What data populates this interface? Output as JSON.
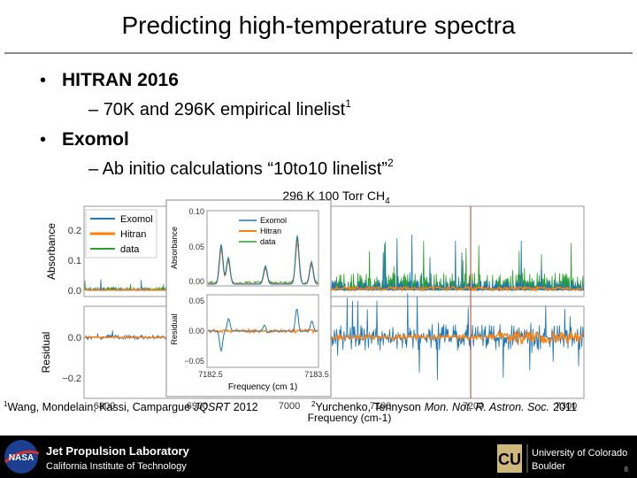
{
  "header": {
    "title": "Predicting high-temperature spectra"
  },
  "bullets": [
    {
      "text": "HITRAN 2016",
      "sub": {
        "text": "70K and 296K empirical linelist",
        "sup": "1"
      }
    },
    {
      "text": "Exomol",
      "sub": {
        "text": "Ab initio calculations “10to10 linelist”",
        "sup": "2"
      }
    }
  ],
  "figure": {
    "title": "296 K 100 Torr CH",
    "title_sub": "4",
    "top_ylabel": "Absorbance",
    "top_yticks": [
      "0.2",
      "0.1",
      "0.0"
    ],
    "bottom_ylabel": "Residual",
    "bottom_yticks": [
      "0.0",
      "−0.2"
    ],
    "xticks": [
      "6800",
      "6900",
      "7000",
      "7100",
      "7200",
      "7300"
    ],
    "xlabel": "Frequency (cm-1)",
    "legend": [
      "Exomol",
      "Hitran",
      "data"
    ],
    "inset": {
      "top_ylabel": "Absorbance",
      "top_yticks": [
        "0.10",
        "0.05",
        "0.00"
      ],
      "bottom_ylabel": "Residual",
      "bottom_yticks": [
        "0.05",
        "0.00",
        "−0.05"
      ],
      "xticks": [
        "7182.5",
        "7183.5"
      ],
      "xlabel": "Frequency (cm 1)",
      "legend": [
        "Exomol",
        "Hitran",
        "data"
      ]
    }
  },
  "footnotes": [
    {
      "sup": "1",
      "authors": "Wang, Mondelain, Kassi, Campargue",
      "journal": "JQSRT",
      "year": "2012"
    },
    {
      "sup": "2",
      "authors": "Yurchenko, Tennyson",
      "journal": "Mon. Not. R. Astron. Soc.",
      "year": "2011"
    }
  ],
  "footer": {
    "nasa": "NASA",
    "jpl": "Jet Propulsion Laboratory",
    "caltech": "California Institute of Technology",
    "cu_1": "University of Colorado",
    "cu_2": "Boulder",
    "page": "8"
  }
}
